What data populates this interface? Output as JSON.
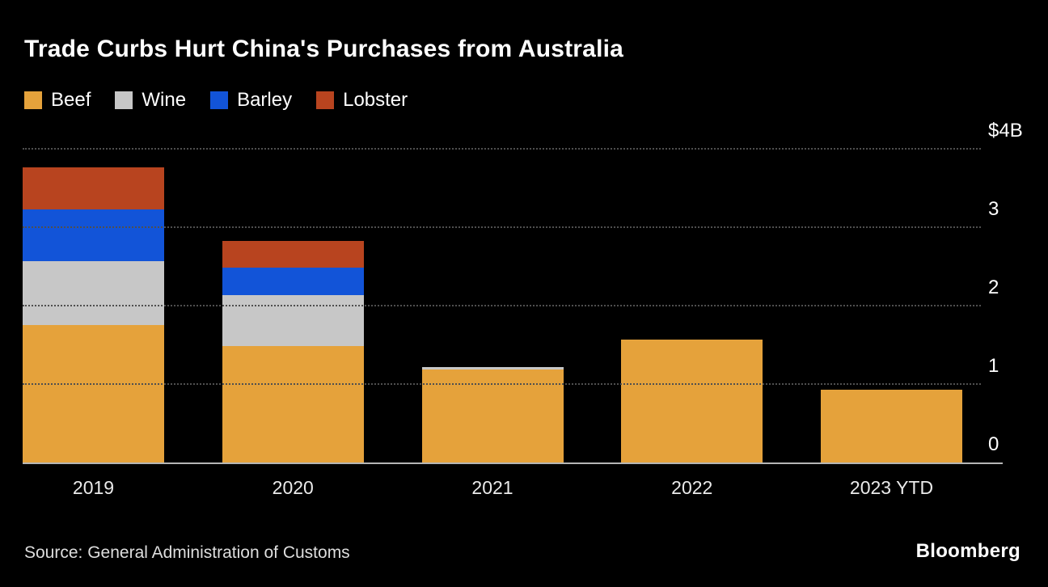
{
  "chart_data": {
    "type": "bar",
    "stacked": true,
    "title": "Trade Curbs Hurt China's Purchases from Australia",
    "categories": [
      "2019",
      "2020",
      "2021",
      "2022",
      "2023 YTD"
    ],
    "series": [
      {
        "name": "Beef",
        "color": "#E5A23B",
        "values": [
          1.75,
          1.48,
          1.19,
          1.57,
          0.93
        ]
      },
      {
        "name": "Wine",
        "color": "#C7C7C7",
        "values": [
          0.82,
          0.65,
          0.03,
          0,
          0
        ]
      },
      {
        "name": "Barley",
        "color": "#1254D8",
        "values": [
          0.66,
          0.36,
          0,
          0,
          0
        ]
      },
      {
        "name": "Lobster",
        "color": "#B8441F",
        "values": [
          0.53,
          0.34,
          0,
          0,
          0
        ]
      }
    ],
    "ylim": [
      0,
      4
    ],
    "yticks": [
      0,
      1,
      2,
      3,
      4
    ],
    "ytick_labels": [
      "0",
      "1",
      "2",
      "3",
      "$4B"
    ],
    "grid": "horizontal-dotted",
    "legend_position": "top-left"
  },
  "footer": {
    "source": "Source: General Administration of Customs",
    "brand": "Bloomberg"
  },
  "colors": {
    "background": "#000000",
    "text": "#FFFFFF",
    "gridline": "#4F4F4F",
    "axis_line": "#B5B5B5"
  }
}
